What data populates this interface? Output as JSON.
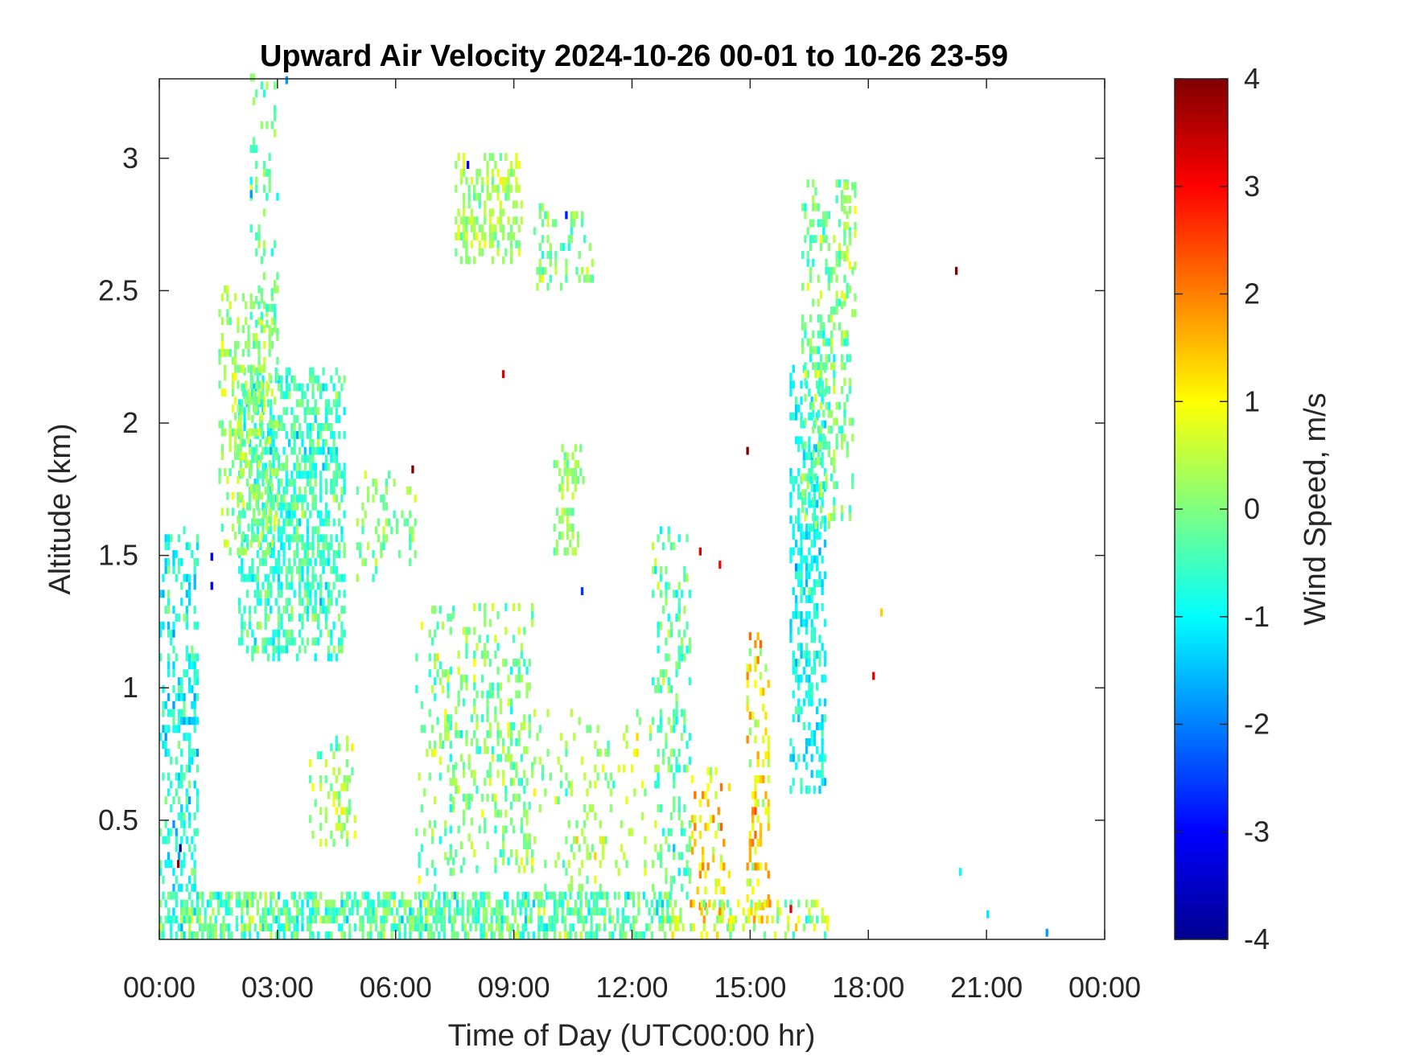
{
  "chart_data": {
    "type": "heatmap",
    "title": "Upward Air Velocity 2024-10-26 00-01 to 10-26 23-59",
    "xlabel": "Time of Day (UTC00:00 hr)",
    "ylabel": "Altitude (km)",
    "xlim": [
      0,
      24
    ],
    "ylim": [
      0.05,
      3.3
    ],
    "x_ticks": [
      {
        "value": 0,
        "label": "00:00"
      },
      {
        "value": 3,
        "label": "03:00"
      },
      {
        "value": 6,
        "label": "06:00"
      },
      {
        "value": 9,
        "label": "09:00"
      },
      {
        "value": 12,
        "label": "12:00"
      },
      {
        "value": 15,
        "label": "15:00"
      },
      {
        "value": 18,
        "label": "18:00"
      },
      {
        "value": 21,
        "label": "21:00"
      },
      {
        "value": 24,
        "label": "00:00"
      }
    ],
    "y_ticks": [
      {
        "value": 0.5,
        "label": "0.5"
      },
      {
        "value": 1,
        "label": "1"
      },
      {
        "value": 1.5,
        "label": "1.5"
      },
      {
        "value": 2,
        "label": "2"
      },
      {
        "value": 2.5,
        "label": "2.5"
      },
      {
        "value": 3,
        "label": "3"
      }
    ],
    "colorbar": {
      "label": "Wind Speed, m/s",
      "range": [
        -4,
        4
      ],
      "ticks": [
        {
          "value": 4,
          "label": "4"
        },
        {
          "value": 3,
          "label": "3"
        },
        {
          "value": 2,
          "label": "2"
        },
        {
          "value": 1,
          "label": "1"
        },
        {
          "value": 0,
          "label": "0"
        },
        {
          "value": -1,
          "label": "-1"
        },
        {
          "value": -2,
          "label": "-2"
        },
        {
          "value": -3,
          "label": "-3"
        },
        {
          "value": -4,
          "label": "-4"
        }
      ],
      "colormap": "jet"
    },
    "grid": false,
    "clusters": [
      {
        "t0": 0.0,
        "t1": 1.0,
        "z0": 0.05,
        "z1": 1.6,
        "mean": -0.8,
        "spread": 0.6,
        "density": 0.55
      },
      {
        "t0": 2.0,
        "t1": 4.7,
        "z0": 1.1,
        "z1": 2.2,
        "mean": -0.5,
        "spread": 0.6,
        "density": 0.7
      },
      {
        "t0": 1.5,
        "t1": 3.0,
        "z0": 1.5,
        "z1": 2.5,
        "mean": 0.2,
        "spread": 0.5,
        "density": 0.45
      },
      {
        "t0": 2.3,
        "t1": 3.0,
        "z0": 2.3,
        "z1": 3.3,
        "mean": -0.2,
        "spread": 0.6,
        "density": 0.25
      },
      {
        "t0": 7.5,
        "t1": 9.2,
        "z0": 2.6,
        "z1": 3.0,
        "mean": 0.3,
        "spread": 0.5,
        "density": 0.6
      },
      {
        "t0": 9.5,
        "t1": 11.0,
        "z0": 2.5,
        "z1": 2.8,
        "mean": 0.0,
        "spread": 0.5,
        "density": 0.35
      },
      {
        "t0": 10.0,
        "t1": 10.8,
        "z0": 1.5,
        "z1": 1.9,
        "mean": 0.1,
        "spread": 0.4,
        "density": 0.5
      },
      {
        "t0": 5.0,
        "t1": 6.5,
        "z0": 1.4,
        "z1": 1.8,
        "mean": 0.0,
        "spread": 0.5,
        "density": 0.3
      },
      {
        "t0": 6.5,
        "t1": 7.5,
        "z0": 0.05,
        "z1": 1.3,
        "mean": 0.0,
        "spread": 0.7,
        "density": 0.2
      },
      {
        "t0": 7.3,
        "t1": 9.5,
        "z0": 0.3,
        "z1": 1.3,
        "mean": 0.0,
        "spread": 0.7,
        "density": 0.35
      },
      {
        "t0": 3.8,
        "t1": 5.0,
        "z0": 0.4,
        "z1": 0.8,
        "mean": 0.2,
        "spread": 0.6,
        "density": 0.3
      },
      {
        "t0": 9.5,
        "t1": 12.5,
        "z0": 0.2,
        "z1": 0.9,
        "mean": 0.3,
        "spread": 0.6,
        "density": 0.2
      },
      {
        "t0": 12.5,
        "t1": 13.5,
        "z0": 0.2,
        "z1": 1.6,
        "mean": -0.3,
        "spread": 0.6,
        "density": 0.35
      },
      {
        "t0": 13.5,
        "t1": 14.5,
        "z0": 0.1,
        "z1": 0.7,
        "mean": 1.2,
        "spread": 0.8,
        "density": 0.25
      },
      {
        "t0": 14.9,
        "t1": 15.5,
        "z0": 0.1,
        "z1": 1.2,
        "mean": 1.1,
        "spread": 0.8,
        "density": 0.45
      },
      {
        "t0": 16.0,
        "t1": 16.9,
        "z0": 0.6,
        "z1": 2.2,
        "mean": -0.9,
        "spread": 0.5,
        "density": 0.55
      },
      {
        "t0": 16.3,
        "t1": 17.6,
        "z0": 1.6,
        "z1": 2.9,
        "mean": -0.1,
        "spread": 0.6,
        "density": 0.45
      },
      {
        "t0": 17.3,
        "t1": 17.7,
        "z0": 2.4,
        "z1": 2.9,
        "mean": 0.3,
        "spread": 0.5,
        "density": 0.3
      },
      {
        "t0": 0.0,
        "t1": 13.0,
        "z0": 0.05,
        "z1": 0.22,
        "mean": -0.3,
        "spread": 0.7,
        "density": 0.8
      },
      {
        "t0": 13.0,
        "t1": 17.0,
        "z0": 0.05,
        "z1": 0.2,
        "mean": 0.6,
        "spread": 0.9,
        "density": 0.4
      }
    ],
    "isolated_points": [
      {
        "t": 20.2,
        "z": 2.56,
        "v": 4.0
      },
      {
        "t": 14.9,
        "z": 1.88,
        "v": 4.0
      },
      {
        "t": 6.4,
        "z": 1.81,
        "v": 4.0
      },
      {
        "t": 8.7,
        "z": 2.17,
        "v": 3.3
      },
      {
        "t": 13.7,
        "z": 1.5,
        "v": 3.2
      },
      {
        "t": 14.2,
        "z": 1.45,
        "v": 3.0
      },
      {
        "t": 18.1,
        "z": 1.03,
        "v": 3.2
      },
      {
        "t": 1.3,
        "z": 1.48,
        "v": -3.0
      },
      {
        "t": 1.3,
        "z": 1.37,
        "v": -3.0
      },
      {
        "t": 0.5,
        "z": 0.38,
        "v": -3.8
      },
      {
        "t": 0.45,
        "z": 0.32,
        "v": 3.9
      },
      {
        "t": 16.0,
        "z": 0.15,
        "v": 3.2
      },
      {
        "t": 18.3,
        "z": 1.27,
        "v": 1.4
      },
      {
        "t": 20.3,
        "z": 0.29,
        "v": -1.0
      },
      {
        "t": 21.0,
        "z": 0.13,
        "v": -1.2
      },
      {
        "t": 22.5,
        "z": 0.06,
        "v": -1.8
      },
      {
        "t": 10.7,
        "z": 1.35,
        "v": -2.6
      },
      {
        "t": 10.3,
        "z": 2.77,
        "v": -2.8
      },
      {
        "t": 7.8,
        "z": 2.96,
        "v": -3.0
      },
      {
        "t": 2.3,
        "z": 2.85,
        "v": -1.8
      },
      {
        "t": 3.2,
        "z": 3.28,
        "v": -1.8
      }
    ]
  }
}
